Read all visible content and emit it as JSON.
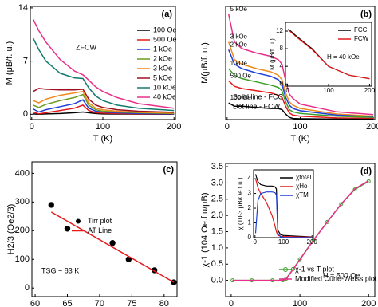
{
  "chart_data": [
    {
      "type": "line",
      "label": "(a)",
      "xlabel": "T (K)",
      "ylabel": "M (μB/f. u.)",
      "xlim": [
        -2,
        202
      ],
      "ylim": [
        -0.7,
        14.2
      ],
      "xticks": [
        0,
        100,
        200
      ],
      "yticks": [
        0,
        7,
        14
      ],
      "legend": "upper right",
      "annotations": [
        {
          "text": "ZFCW",
          "color": "#000000"
        }
      ],
      "x": [
        2,
        10,
        20,
        40,
        60,
        72,
        80,
        90,
        100,
        120,
        150,
        200
      ],
      "series": [
        {
          "name": "100 Oe",
          "color": "#000000",
          "values": [
            0.05,
            0,
            0.05,
            0.1,
            0.2,
            0.3,
            0.2,
            0.1,
            0.05,
            0.03,
            0.02,
            0.01
          ]
        },
        {
          "name": "500 Oe",
          "color": "#e41a1c",
          "values": [
            0.3,
            0.05,
            0.2,
            0.5,
            0.8,
            1.2,
            0.5,
            0.2,
            0.15,
            0.1,
            0.05,
            0.03
          ]
        },
        {
          "name": "1 kOe",
          "color": "#1f3fd6",
          "values": [
            0.7,
            0.3,
            0.6,
            1.0,
            1.4,
            1.9,
            0.8,
            0.4,
            0.3,
            0.2,
            0.1,
            0.05
          ]
        },
        {
          "name": "2 kOe",
          "color": "#6a9a1f",
          "values": [
            1.2,
            0.9,
            1.3,
            1.8,
            2.2,
            2.6,
            1.2,
            0.6,
            0.4,
            0.3,
            0.2,
            0.1
          ]
        },
        {
          "name": "3 kOe",
          "color": "#f08a1c",
          "values": [
            1.8,
            1.5,
            2.0,
            2.5,
            2.8,
            3.0,
            1.5,
            0.8,
            0.6,
            0.4,
            0.25,
            0.15
          ]
        },
        {
          "name": "5 kOe",
          "color": "#a01020",
          "values": [
            3.0,
            3.4,
            3.3,
            3.2,
            3.2,
            3.3,
            2.0,
            1.2,
            0.9,
            0.6,
            0.4,
            0.25
          ]
        },
        {
          "name": "10 kOe",
          "color": "#127a6e",
          "values": [
            10,
            8.5,
            7,
            5.4,
            4.8,
            4.7,
            3.5,
            2.4,
            1.8,
            1.2,
            0.8,
            0.5
          ]
        },
        {
          "name": "40 kOe",
          "color": "#e8308a",
          "values": [
            12.5,
            11,
            9.5,
            7.2,
            5.7,
            5.2,
            4.5,
            3.6,
            3.0,
            2.2,
            1.4,
            0.8
          ]
        }
      ]
    },
    {
      "type": "line",
      "label": "(b)",
      "xlabel": "T (K)",
      "ylabel": "M(μB/f. u.)",
      "xlim": [
        -2,
        202
      ],
      "ylim": [
        0,
        10.2
      ],
      "xticks": [
        0,
        100,
        200
      ],
      "legend": "curve labels",
      "annotations": [
        {
          "text": "Solid line - FCC",
          "color": "#000000"
        },
        {
          "text": "Dot line - FCW",
          "color": "#000000"
        }
      ],
      "x": [
        2,
        10,
        20,
        40,
        60,
        70,
        75,
        80,
        85,
        90,
        100,
        150,
        200
      ],
      "series": [
        {
          "name": "5 kOe",
          "color": "#e8308a",
          "values": [
            9.5,
            7,
            6.4,
            6.0,
            5.7,
            5.4,
            5.0,
            3.5,
            2.3,
            1.9,
            1.4,
            0.7,
            0.45
          ]
        },
        {
          "name": "3 kOe",
          "color": "#f08a1c",
          "values": [
            7,
            5.4,
            5.0,
            4.6,
            4.3,
            4.0,
            3.6,
            2.4,
            1.6,
            1.3,
            1.0,
            0.5,
            0.3
          ]
        },
        {
          "name": "2 kOe",
          "color": "#1f3fd6",
          "values": [
            6.3,
            5.0,
            4.6,
            4.2,
            3.9,
            3.6,
            3.2,
            2.0,
            1.3,
            1.0,
            0.8,
            0.4,
            0.25
          ]
        },
        {
          "name": "1 kOe",
          "color": "#3aa02a",
          "values": [
            4.6,
            4.0,
            3.7,
            3.4,
            3.1,
            2.9,
            2.6,
            1.6,
            0.9,
            0.7,
            0.55,
            0.3,
            0.2
          ]
        },
        {
          "name": "500 Oe",
          "color": "#e41a1c",
          "values": [
            3.5,
            3.0,
            2.8,
            2.6,
            2.4,
            2.2,
            2.0,
            1.2,
            0.6,
            0.4,
            0.3,
            0.15,
            0.1
          ]
        },
        {
          "name": "100 Oe",
          "color": "#000000",
          "values": [
            1.5,
            1.2,
            1.2,
            1.1,
            1.0,
            1.0,
            0.9,
            0.5,
            0.2,
            0.1,
            0.07,
            0.04,
            0.03
          ]
        }
      ],
      "inset": {
        "type": "line",
        "ylabel": "M (μB/f. u.)",
        "xlim": [
          -5,
          205
        ],
        "ylim": [
          -0.5,
          14
        ],
        "xticks": [
          0,
          100,
          200
        ],
        "yticks": [
          0,
          4,
          8,
          12
        ],
        "legend": "upper right",
        "annotations": [
          {
            "text": "H = 40 kOe",
            "color": "#000000"
          }
        ],
        "x": [
          2,
          20,
          40,
          60,
          80,
          90,
          100,
          150,
          200
        ],
        "series": [
          {
            "name": "FCC",
            "color": "#000000",
            "values": [
              12.5,
              11,
              9.5,
              8,
              6,
              5,
              4,
              2,
              1.2
            ]
          },
          {
            "name": "FCW",
            "color": "#e41a1c",
            "values": [
              12.3,
              10.8,
              9.3,
              7.8,
              5.9,
              4.9,
              4,
              2,
              1.2
            ]
          }
        ]
      }
    },
    {
      "type": "scatter",
      "label": "(c)",
      "xlabel": "Tirr (K)",
      "ylabel": "H2/3 (Oe2/3)",
      "xlim": [
        59.5,
        82
      ],
      "ylim": [
        -30,
        440
      ],
      "xticks": [
        60,
        65,
        70,
        75,
        80
      ],
      "yticks": [
        0,
        100,
        200,
        300,
        400
      ],
      "legend": "center right",
      "annotations": [
        {
          "text": "TSG ~ 83 K",
          "color": "#1f3fd6"
        }
      ],
      "series": [
        {
          "name": "Tirr plot",
          "color": "#000000",
          "marker": true,
          "line": false,
          "x": [
            62.5,
            65,
            72,
            74.5,
            78.5,
            81.5
          ],
          "values": [
            290,
            207,
            157,
            100,
            62,
            20
          ]
        },
        {
          "name": "AT Line",
          "color": "#e41a1c",
          "marker": false,
          "line": true,
          "x": [
            62.5,
            81.5
          ],
          "values": [
            265,
            20
          ]
        }
      ]
    },
    {
      "type": "line",
      "label": "(d)",
      "xlabel": "T (K)",
      "ylabel": "χ-1 (104 Oe.f.u/μB)",
      "xlim": [
        -8,
        209
      ],
      "ylim": [
        -0.5,
        3.6
      ],
      "xticks": [
        0,
        100,
        200
      ],
      "yticks": [
        {
          "value": 0,
          "label": "0.0"
        },
        0.5,
        {
          "value": 1,
          "label": "1.0"
        },
        1.5,
        {
          "value": 2,
          "label": "2.0"
        },
        2.5,
        {
          "value": 3,
          "label": "3.0"
        },
        3.5
      ],
      "legend": "lower right",
      "annotations": [
        {
          "text": "H = 500 Oe",
          "color": "#1f3fd6"
        }
      ],
      "x": [
        2,
        30,
        60,
        75,
        80,
        90,
        100,
        120,
        140,
        160,
        180,
        200
      ],
      "series": [
        {
          "name": "χ-1 vs T plot",
          "color": "#3aa02a",
          "marker": true,
          "line": true,
          "values": [
            0,
            0,
            0,
            0,
            0.05,
            0.35,
            0.65,
            1.25,
            1.8,
            2.35,
            2.8,
            3.05
          ]
        },
        {
          "name": "Modified Curie-Weiss plot",
          "color": "#e8308a",
          "marker": false,
          "line": true,
          "values": [
            0,
            0,
            0,
            0,
            0.04,
            0.34,
            0.64,
            1.24,
            1.8,
            2.35,
            2.82,
            3.07
          ]
        }
      ],
      "inset": {
        "type": "line",
        "ylabel": "χ (10-3 μB/Oe.f.u.)",
        "xlim": [
          -5,
          205
        ],
        "ylim": [
          0,
          4.6
        ],
        "xticks": [
          0,
          100,
          200
        ],
        "yticks": [
          0,
          1,
          2,
          3,
          4
        ],
        "legend": "upper right",
        "x": [
          2,
          10,
          20,
          40,
          60,
          70,
          75,
          80,
          90,
          100,
          150,
          200
        ],
        "series": [
          {
            "name": "χtotal",
            "color": "#000000",
            "values": [
              4.3,
              3.8,
              3.6,
              3.5,
              3.5,
              3.45,
              3.3,
              0.5,
              0.2,
              0.15,
              0.1,
              0.05
            ]
          },
          {
            "name": "χHo",
            "color": "#e41a1c",
            "values": [
              4.0,
              3.4,
              3.0,
              2.4,
              1.5,
              0.8,
              0.4,
              0.15,
              0.1,
              0.08,
              0.05,
              0.03
            ]
          },
          {
            "name": "χTM",
            "color": "#1f3fd6",
            "values": [
              0.3,
              2.5,
              3.0,
              3.1,
              3.1,
              3.05,
              2.9,
              0.3,
              0.05,
              0.02,
              0.01,
              0.01
            ]
          }
        ]
      }
    }
  ]
}
